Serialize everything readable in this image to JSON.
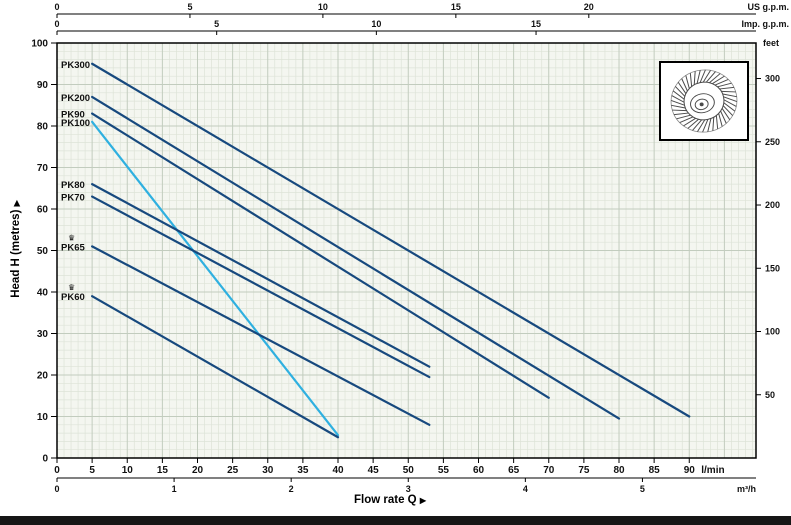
{
  "axes": {
    "y_left": {
      "label": "Head H (metres)",
      "arrow": "▶"
    },
    "x_bottom": {
      "label": "Flow rate Q",
      "arrow": "▶"
    }
  },
  "icons": {
    "crown": "♛",
    "arrow_right": "▶"
  },
  "colors": {
    "curve_dark": "#17497e",
    "curve_highlight": "#2fb0e0",
    "label_navy": "#14375e"
  },
  "chart_data": {
    "type": "line",
    "xlabel": "Flow rate Q",
    "ylabel": "Head H (metres)",
    "x_primary": {
      "unit": "l/min",
      "max": 99.5,
      "ticks": [
        0,
        5,
        10,
        15,
        20,
        25,
        30,
        35,
        40,
        45,
        50,
        55,
        60,
        65,
        70,
        75,
        80,
        85,
        90
      ]
    },
    "x_secondary": [
      {
        "unit": "US g.p.m.",
        "position": "top-outer",
        "lmin_per_unit": 3.785,
        "ticks": [
          0,
          5,
          10,
          15,
          20
        ]
      },
      {
        "unit": "Imp. g.p.m.",
        "position": "top-inner",
        "lmin_per_unit": 4.546,
        "ticks": [
          0,
          5,
          10,
          15
        ]
      },
      {
        "unit": "m³/h",
        "position": "bottom-outer",
        "lmin_per_unit": 16.667,
        "ticks": [
          0,
          1,
          2,
          3,
          4,
          5
        ]
      }
    ],
    "y_primary": {
      "unit": "m",
      "max": 100,
      "ticks": [
        0,
        10,
        20,
        30,
        40,
        50,
        60,
        70,
        80,
        90,
        100
      ]
    },
    "y_secondary": {
      "unit": "feet",
      "m_per_unit": 0.3048,
      "ticks": [
        50,
        100,
        150,
        200,
        250,
        300
      ]
    },
    "grid": true,
    "legend": "inline-labels",
    "series": [
      {
        "name": "PK300",
        "color": "#17497e",
        "crown": false,
        "points": [
          [
            5,
            95
          ],
          [
            90,
            10
          ]
        ]
      },
      {
        "name": "PK200",
        "color": "#17497e",
        "crown": false,
        "points": [
          [
            5,
            87
          ],
          [
            80,
            9.5
          ]
        ]
      },
      {
        "name": "PK90",
        "color": "#17497e",
        "crown": false,
        "points": [
          [
            5,
            83
          ],
          [
            70,
            14.5
          ]
        ]
      },
      {
        "name": "PK100",
        "color": "#2fb0e0",
        "crown": false,
        "points": [
          [
            5,
            81
          ],
          [
            40,
            5.5
          ]
        ]
      },
      {
        "name": "PK80",
        "color": "#17497e",
        "crown": false,
        "points": [
          [
            5,
            66
          ],
          [
            53,
            22
          ]
        ]
      },
      {
        "name": "PK70",
        "color": "#17497e",
        "crown": false,
        "points": [
          [
            5,
            63
          ],
          [
            53,
            19.5
          ]
        ]
      },
      {
        "name": "PK65",
        "color": "#17497e",
        "crown": true,
        "points": [
          [
            5,
            51
          ],
          [
            53,
            8
          ]
        ]
      },
      {
        "name": "PK60",
        "color": "#17497e",
        "crown": true,
        "points": [
          [
            5,
            39
          ],
          [
            40,
            5
          ]
        ]
      }
    ]
  }
}
